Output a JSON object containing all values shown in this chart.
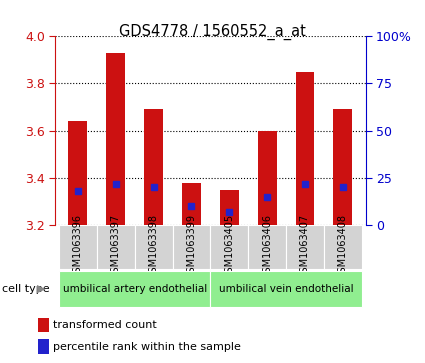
{
  "title": "GDS4778 / 1560552_a_at",
  "samples": [
    "GSM1063396",
    "GSM1063397",
    "GSM1063398",
    "GSM1063399",
    "GSM1063405",
    "GSM1063406",
    "GSM1063407",
    "GSM1063408"
  ],
  "transformed_counts": [
    3.64,
    3.93,
    3.69,
    3.38,
    3.35,
    3.6,
    3.85,
    3.69
  ],
  "percentile_ranks": [
    18,
    22,
    20,
    10,
    7,
    15,
    22,
    20
  ],
  "ylim": [
    3.2,
    4.0
  ],
  "yticks": [
    3.2,
    3.4,
    3.6,
    3.8,
    4.0
  ],
  "right_ytick_labels": [
    "0",
    "25",
    "50",
    "75",
    "100%"
  ],
  "bar_color": "#CC1111",
  "percentile_color": "#2222CC",
  "bar_width": 0.5,
  "cell_type_groups": [
    {
      "label": "umbilical artery endothelial",
      "start": 0,
      "end": 4,
      "color": "#90EE90"
    },
    {
      "label": "umbilical vein endothelial",
      "start": 4,
      "end": 8,
      "color": "#90EE90"
    }
  ],
  "legend_items": [
    {
      "label": "transformed count",
      "color": "#CC1111"
    },
    {
      "label": "percentile rank within the sample",
      "color": "#2222CC"
    }
  ],
  "cell_type_label": "cell type",
  "tick_area_color": "#d3d3d3",
  "left_tick_color": "#CC1111",
  "right_tick_color": "#0000CC"
}
